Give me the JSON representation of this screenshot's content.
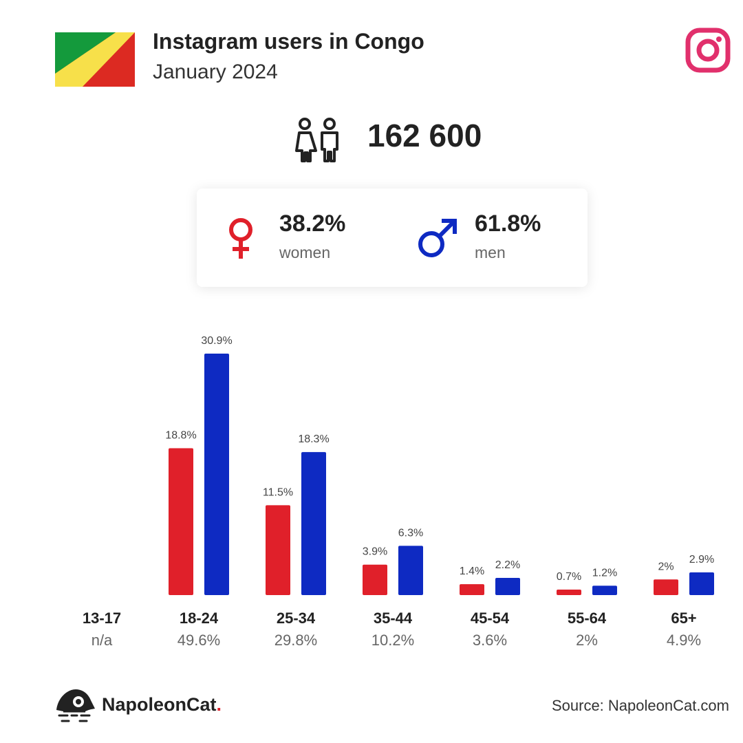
{
  "header": {
    "title": "Instagram users in Congo",
    "subtitle": "January 2024",
    "flag_colors": {
      "green": "#149a3c",
      "yellow": "#f7e04a",
      "red": "#dc2a22"
    },
    "brand_icon": "instagram-logo-icon",
    "brand_icon_color": "#e1306c"
  },
  "total": {
    "icon": "users-icon",
    "value": "162 600"
  },
  "gender": {
    "women": {
      "icon": "female-icon",
      "pct": "38.2%",
      "label": "women",
      "color": "#e0202a"
    },
    "men": {
      "icon": "male-icon",
      "pct": "61.8%",
      "label": "men",
      "color": "#0e2ac2"
    }
  },
  "chart_data": {
    "type": "bar",
    "categories": [
      "13-17",
      "18-24",
      "25-34",
      "35-44",
      "45-54",
      "55-64",
      "65+"
    ],
    "category_totals": [
      "n/a",
      "49.6%",
      "29.8%",
      "10.2%",
      "3.6%",
      "2%",
      "4.9%"
    ],
    "series": [
      {
        "color": "#e0202a",
        "values": [
          null,
          18.8,
          11.5,
          3.9,
          1.4,
          0.7,
          2
        ],
        "labels": [
          null,
          "18.8%",
          "11.5%",
          "3.9%",
          "1.4%",
          "0.7%",
          "2%"
        ]
      },
      {
        "color": "#0e2ac2",
        "values": [
          null,
          30.9,
          18.3,
          6.3,
          2.2,
          1.2,
          2.9
        ],
        "labels": [
          null,
          "30.9%",
          "18.3%",
          "6.3%",
          "2.2%",
          "1.2%",
          "2.9%"
        ]
      }
    ],
    "ylim": [
      0,
      30.9
    ]
  },
  "footer": {
    "brand_name": "NapoleonCat",
    "brand_dot": ".",
    "source": "Source: NapoleonCat.com"
  }
}
